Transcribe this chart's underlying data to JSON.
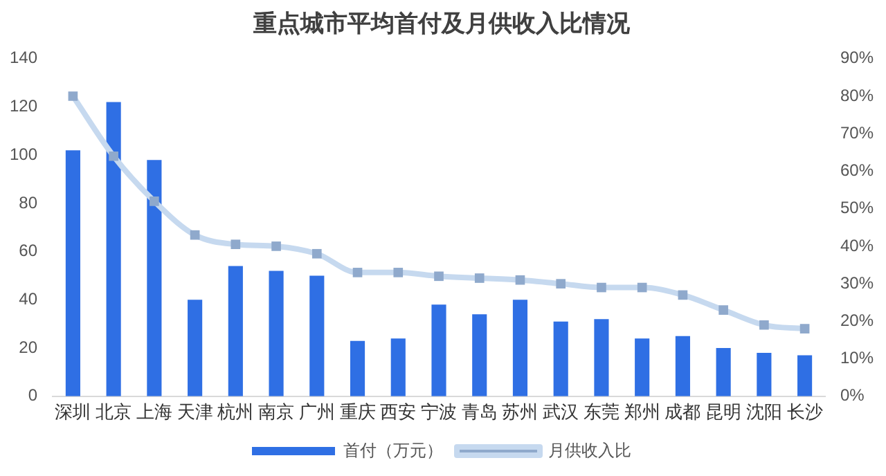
{
  "chart_data": {
    "type": "bar",
    "title": "重点城市平均首付及月供收入比情况",
    "categories": [
      "深圳",
      "北京",
      "上海",
      "天津",
      "杭州",
      "南京",
      "广州",
      "重庆",
      "西安",
      "宁波",
      "青岛",
      "苏州",
      "武汉",
      "东莞",
      "郑州",
      "成都",
      "昆明",
      "沈阳",
      "长沙"
    ],
    "series": [
      {
        "name": "首付（万元）",
        "color": "#2f6fe4",
        "values": [
          102,
          122,
          98,
          40,
          54,
          52,
          50,
          23,
          24,
          38,
          34,
          40,
          31,
          32,
          24,
          25,
          20,
          18,
          17
        ]
      },
      {
        "name": "月供收入比",
        "type": "line",
        "axis": "y2",
        "color": "#c6d9ef",
        "values": [
          80,
          64,
          52,
          43,
          40.5,
          40,
          38,
          33,
          33,
          32,
          31.5,
          31,
          30,
          29,
          29,
          27,
          23,
          19,
          18
        ]
      }
    ],
    "ylim": [
      0,
      140
    ],
    "yticks": [
      0,
      20,
      40,
      60,
      80,
      100,
      120,
      140
    ],
    "y2lim": [
      0,
      90
    ],
    "y2ticks": [
      {
        "value": 0,
        "label": "0%"
      },
      {
        "value": 10,
        "label": "10%"
      },
      {
        "value": 20,
        "label": "20%"
      },
      {
        "value": 30,
        "label": "30%"
      },
      {
        "value": 40,
        "label": "40%"
      },
      {
        "value": 50,
        "label": "50%"
      },
      {
        "value": 60,
        "label": "60%"
      },
      {
        "value": 70,
        "label": "70%"
      },
      {
        "value": 80,
        "label": "80%"
      },
      {
        "value": 90,
        "label": "90%"
      }
    ],
    "grid": false,
    "legend": "bottom",
    "marker": "square"
  }
}
